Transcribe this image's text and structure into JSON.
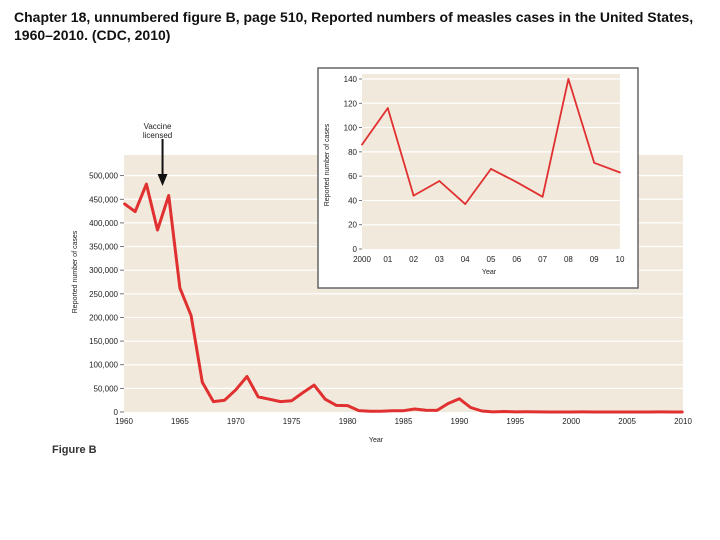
{
  "title": "Chapter 18, unnumbered figure B, page 510, Reported numbers of measles cases in the United States, 1960–2010. (CDC, 2010)",
  "figure_label": "Figure B",
  "colors": {
    "line": "#e03030",
    "panel": "#f1e9dc",
    "grid": "#ffffff",
    "inset_border": "#666666"
  },
  "chart_data": [
    {
      "type": "line",
      "xlabel": "Year",
      "ylabel": "Reported number of cases",
      "annotation": "Vaccine licensed",
      "annotation_x": 1963,
      "xlim": [
        1960,
        2010
      ],
      "ylim": [
        0,
        550000
      ],
      "grid": true,
      "x_ticks": [
        "1960",
        "1965",
        "1970",
        "1975",
        "1980",
        "1985",
        "1990",
        "1995",
        "2000",
        "2005",
        "2010"
      ],
      "y_ticks": [
        "0",
        "50,000",
        "100,000",
        "150,000",
        "200,000",
        "250,000",
        "300,000",
        "350,000",
        "400,000",
        "450,000",
        "500,000"
      ],
      "x": [
        1960,
        1961,
        1962,
        1963,
        1964,
        1965,
        1966,
        1967,
        1968,
        1969,
        1970,
        1971,
        1972,
        1973,
        1974,
        1975,
        1976,
        1977,
        1978,
        1979,
        1980,
        1981,
        1982,
        1983,
        1984,
        1985,
        1986,
        1987,
        1988,
        1989,
        1990,
        1991,
        1992,
        1993,
        1994,
        1995,
        1996,
        1997,
        1998,
        1999,
        2000,
        2001,
        2002,
        2003,
        2004,
        2005,
        2006,
        2007,
        2008,
        2009,
        2010
      ],
      "values": [
        441000,
        424000,
        482000,
        385000,
        458000,
        262000,
        204000,
        63000,
        22000,
        25000,
        47000,
        75000,
        32000,
        27000,
        22000,
        24000,
        41000,
        57000,
        27000,
        14000,
        13500,
        3000,
        1700,
        1500,
        2600,
        2800,
        6300,
        3700,
        3400,
        18000,
        28000,
        9600,
        2200,
        310,
        960,
        310,
        510,
        140,
        100,
        100,
        86,
        116,
        44,
        56,
        37,
        66,
        55,
        43,
        140,
        71,
        63
      ]
    },
    {
      "type": "line",
      "xlabel": "Year",
      "ylabel": "Reported number of cases",
      "xlim": [
        2000,
        2010
      ],
      "ylim": [
        0,
        140
      ],
      "grid": true,
      "x_ticks": [
        "2000",
        "01",
        "02",
        "03",
        "04",
        "05",
        "06",
        "07",
        "08",
        "09",
        "10"
      ],
      "y_ticks": [
        "0",
        "20",
        "40",
        "60",
        "80",
        "100",
        "120",
        "140"
      ],
      "x": [
        2000,
        2001,
        2002,
        2003,
        2004,
        2005,
        2006,
        2007,
        2008,
        2009,
        2010
      ],
      "values": [
        86,
        116,
        44,
        56,
        37,
        66,
        55,
        43,
        140,
        71,
        63
      ]
    }
  ]
}
